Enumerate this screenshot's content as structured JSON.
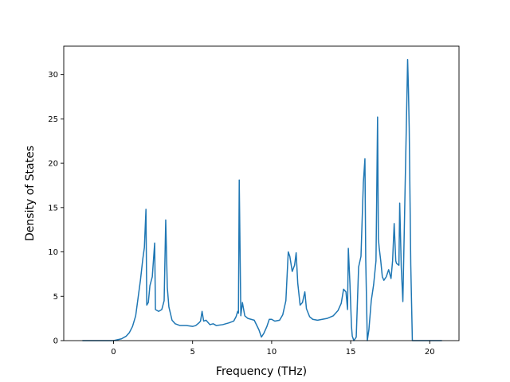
{
  "chart_data": {
    "type": "line",
    "xlabel": "Frequency (THz)",
    "ylabel": "Density of States",
    "xlim": [
      -3.15,
      21.85
    ],
    "ylim": [
      0,
      33.2
    ],
    "x_ticks": [
      0,
      5,
      10,
      15,
      20
    ],
    "y_ticks": [
      0,
      5,
      10,
      15,
      20,
      25,
      30
    ],
    "grid": false,
    "series": [
      {
        "color": "#1f77b4",
        "x": [
          -1.97,
          -1.0,
          0.0,
          0.5,
          0.8,
          1.0,
          1.2,
          1.4,
          1.55,
          1.7,
          1.85,
          1.95,
          2.05,
          2.1,
          2.2,
          2.3,
          2.45,
          2.6,
          2.65,
          2.75,
          2.85,
          3.05,
          3.2,
          3.3,
          3.4,
          3.5,
          3.7,
          3.9,
          4.2,
          4.6,
          5.0,
          5.2,
          5.4,
          5.5,
          5.6,
          5.7,
          5.85,
          6.1,
          6.3,
          6.5,
          6.9,
          7.3,
          7.6,
          7.75,
          7.85,
          7.9,
          7.95,
          8.05,
          8.15,
          8.3,
          8.5,
          8.9,
          9.2,
          9.35,
          9.5,
          9.7,
          9.85,
          10.0,
          10.2,
          10.5,
          10.7,
          10.9,
          11.05,
          11.15,
          11.3,
          11.45,
          11.55,
          11.65,
          11.8,
          11.95,
          12.1,
          12.2,
          12.4,
          12.6,
          12.9,
          13.2,
          13.5,
          13.9,
          14.2,
          14.4,
          14.55,
          14.7,
          14.8,
          14.85,
          14.95,
          15.05,
          15.1,
          15.2,
          15.35,
          15.5,
          15.65,
          15.8,
          15.9,
          15.95,
          16.05,
          16.15,
          16.3,
          16.45,
          16.6,
          16.7,
          16.75,
          16.8,
          16.9,
          17.0,
          17.1,
          17.25,
          17.4,
          17.55,
          17.65,
          17.75,
          17.85,
          17.9,
          18.05,
          18.1,
          18.2,
          18.3,
          18.45,
          18.55,
          18.6,
          18.65,
          18.7,
          18.8,
          18.9,
          19.5,
          20.77
        ],
        "y": [
          0,
          0,
          0,
          0.2,
          0.5,
          0.9,
          1.6,
          2.8,
          4.8,
          6.8,
          9.2,
          10.5,
          14.8,
          4.0,
          4.3,
          6.2,
          7.2,
          11.0,
          3.5,
          3.4,
          3.3,
          3.5,
          4.5,
          13.6,
          6.0,
          3.8,
          2.3,
          1.9,
          1.7,
          1.7,
          1.6,
          1.7,
          2.0,
          2.2,
          3.3,
          2.2,
          2.3,
          1.8,
          1.9,
          1.7,
          1.8,
          2.0,
          2.2,
          2.7,
          3.3,
          3.1,
          18.1,
          2.8,
          4.3,
          2.8,
          2.5,
          2.3,
          1.2,
          0.4,
          0.8,
          1.6,
          2.4,
          2.4,
          2.2,
          2.3,
          2.9,
          4.5,
          10.0,
          9.5,
          7.8,
          8.5,
          9.9,
          6.5,
          4.0,
          4.3,
          5.5,
          3.6,
          2.7,
          2.4,
          2.3,
          2.4,
          2.5,
          2.8,
          3.4,
          4.2,
          5.8,
          5.5,
          3.5,
          10.4,
          6.5,
          1.6,
          0.5,
          0,
          0.4,
          8.3,
          9.5,
          17.8,
          20.5,
          9.2,
          0,
          1.2,
          4.5,
          6.3,
          9.0,
          25.2,
          11.5,
          10.5,
          9.0,
          7.2,
          6.8,
          7.2,
          8.0,
          7.0,
          9.0,
          13.2,
          9.0,
          8.7,
          8.5,
          15.5,
          8.2,
          4.4,
          18.0,
          27.0,
          31.7,
          28.5,
          24.0,
          8.5,
          0,
          0,
          0
        ]
      }
    ]
  }
}
